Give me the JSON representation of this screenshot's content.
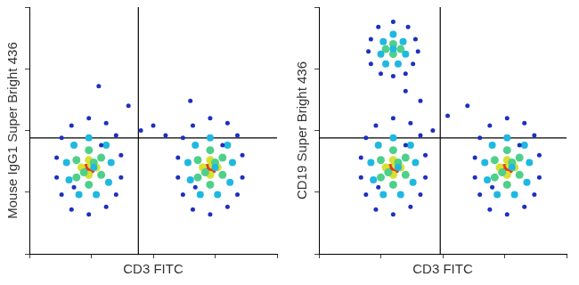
{
  "chart_data": [
    {
      "type": "scatter",
      "xlabel": "CD3 FITC",
      "ylabel": "Mouse IgG1 Super Bright 436",
      "xlim": [
        0,
        100
      ],
      "ylim": [
        0,
        100
      ],
      "xticks": [
        0,
        25,
        50,
        75,
        100
      ],
      "yticks": [
        0,
        25,
        50,
        75,
        100
      ],
      "tick_labels": false,
      "grid": false,
      "gates": {
        "x": 44,
        "y": 47
      },
      "series": [
        {
          "color": "#1f2fbf",
          "x": [
            24,
            31,
            35,
            37,
            37,
            35,
            31,
            24,
            17,
            13,
            11,
            11,
            13,
            17,
            29,
            18,
            73,
            80,
            84,
            86,
            86,
            84,
            80,
            73,
            66,
            62,
            60,
            60,
            62,
            66,
            78,
            67,
            45,
            50,
            40,
            55,
            28,
            65
          ],
          "y": [
            55,
            53,
            48,
            40,
            31,
            24,
            19,
            16,
            18,
            24,
            31,
            39,
            47,
            52,
            44,
            27,
            55,
            53,
            48,
            40,
            31,
            24,
            19,
            16,
            18,
            24,
            31,
            39,
            47,
            52,
            44,
            27,
            50,
            52,
            60,
            48,
            68,
            62
          ]
        },
        {
          "color": "#1fb8e0",
          "x": [
            24,
            31,
            33,
            32,
            27,
            20,
            16,
            15,
            18,
            26,
            73,
            80,
            82,
            81,
            76,
            69,
            65,
            64,
            67,
            75
          ],
          "y": [
            47,
            44,
            37,
            29,
            24,
            24,
            30,
            37,
            44,
            35,
            47,
            44,
            37,
            29,
            24,
            24,
            30,
            37,
            44,
            35
          ]
        },
        {
          "color": "#4fd08a",
          "x": [
            24,
            29,
            29,
            24,
            19,
            19,
            26,
            22,
            73,
            78,
            78,
            73,
            68,
            68,
            75,
            71
          ],
          "y": [
            42,
            39,
            32,
            28,
            31,
            38,
            37,
            33,
            42,
            39,
            32,
            28,
            31,
            38,
            37,
            33
          ]
        },
        {
          "color": "#d8e030",
          "x": [
            24,
            27,
            24,
            21,
            25,
            73,
            76,
            73,
            70,
            74
          ],
          "y": [
            38,
            35,
            32,
            35,
            36,
            38,
            35,
            32,
            35,
            36
          ]
        },
        {
          "color": "#e83a1e",
          "x": [
            23,
            25,
            72,
            74
          ],
          "y": [
            35,
            34,
            35,
            34
          ]
        }
      ]
    },
    {
      "type": "scatter",
      "xlabel": "CD3 FITC",
      "ylabel": "CD19 Super Bright 436",
      "xlim": [
        0,
        100
      ],
      "ylim": [
        0,
        100
      ],
      "xticks": [
        0,
        25,
        50,
        75,
        100
      ],
      "yticks": [
        0,
        25,
        50,
        75,
        100
      ],
      "tick_labels": false,
      "grid": false,
      "gates": {
        "x": 49,
        "y": 47
      },
      "series": [
        {
          "color": "#1f2fbf",
          "x": [
            30,
            37,
            41,
            43,
            43,
            41,
            37,
            30,
            23,
            19,
            17,
            17,
            19,
            23,
            35,
            24,
            76,
            83,
            87,
            89,
            89,
            87,
            83,
            76,
            69,
            65,
            63,
            63,
            65,
            69,
            81,
            70,
            30,
            36,
            39,
            40,
            38,
            35,
            30,
            25,
            21,
            20,
            21,
            24,
            46,
            52,
            41,
            60,
            35
          ],
          "y": [
            55,
            53,
            48,
            40,
            31,
            24,
            19,
            16,
            18,
            24,
            31,
            39,
            47,
            52,
            44,
            27,
            55,
            53,
            48,
            40,
            31,
            24,
            19,
            16,
            18,
            24,
            31,
            39,
            47,
            52,
            44,
            27,
            94,
            92,
            87,
            82,
            77,
            73,
            72,
            73,
            77,
            82,
            87,
            92,
            50,
            56,
            62,
            60,
            66
          ]
        },
        {
          "color": "#1fb8e0",
          "x": [
            30,
            37,
            39,
            38,
            33,
            26,
            22,
            21,
            24,
            32,
            76,
            83,
            85,
            84,
            79,
            72,
            68,
            67,
            70,
            78,
            30,
            34,
            35,
            32,
            27,
            25,
            26,
            30
          ],
          "y": [
            47,
            44,
            37,
            29,
            24,
            24,
            30,
            37,
            44,
            35,
            47,
            44,
            37,
            29,
            24,
            24,
            30,
            37,
            44,
            35,
            89,
            86,
            81,
            77,
            77,
            81,
            86,
            83
          ]
        },
        {
          "color": "#4fd08a",
          "x": [
            30,
            35,
            35,
            30,
            25,
            25,
            32,
            28,
            76,
            81,
            81,
            76,
            71,
            71,
            78,
            74,
            30,
            33,
            30,
            27
          ],
          "y": [
            42,
            39,
            32,
            28,
            31,
            38,
            37,
            33,
            42,
            39,
            32,
            28,
            31,
            38,
            37,
            33,
            85,
            83,
            81,
            83
          ]
        },
        {
          "color": "#d8e030",
          "x": [
            30,
            33,
            30,
            27,
            31,
            76,
            79,
            76,
            73,
            77
          ],
          "y": [
            38,
            35,
            32,
            35,
            36,
            38,
            35,
            32,
            35,
            36
          ]
        },
        {
          "color": "#e83a1e",
          "x": [
            29,
            31,
            75,
            77
          ],
          "y": [
            35,
            34,
            35,
            34
          ]
        }
      ]
    }
  ]
}
